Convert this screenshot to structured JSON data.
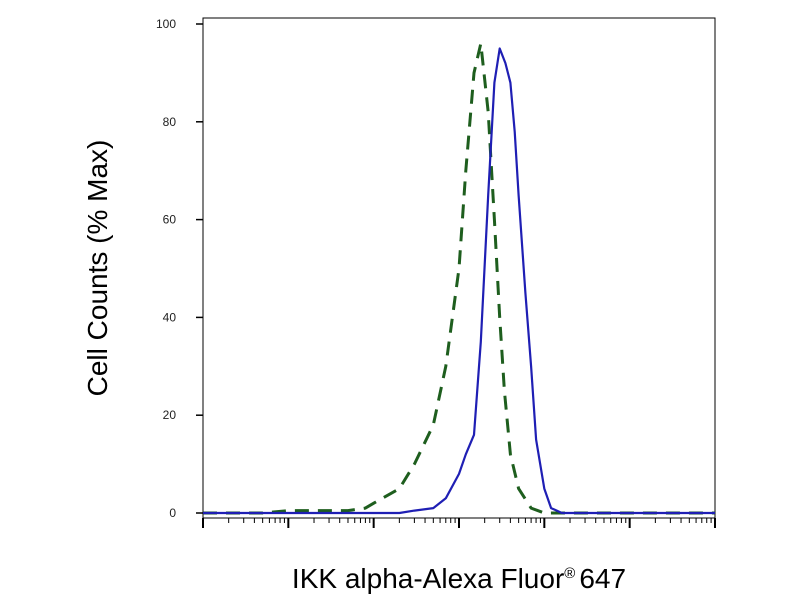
{
  "chart_data": {
    "type": "line",
    "xlabel": "IKK alpha-Alexa Fluor",
    "xlabel_mark": "®",
    "xlabel_suffix": "647",
    "ylabel": "Cell Counts (% Max)",
    "x_scale": "log",
    "xlim": [
      1,
      1000000
    ],
    "ylim": [
      0,
      100
    ],
    "y_ticks": [
      "100",
      "80",
      "60",
      "40",
      "20",
      "0"
    ],
    "grid": false,
    "legend": "none",
    "series": [
      {
        "style": "dashed",
        "color": "#1e5e1e",
        "x": [
          1,
          5,
          10,
          30,
          50,
          80,
          100,
          200,
          300,
          500,
          700,
          1000,
          1200,
          1500,
          1800,
          2200,
          2600,
          3000,
          3400,
          4000,
          5000,
          7000,
          10000,
          15000,
          20000,
          50000,
          1000000
        ],
        "y": [
          0,
          0,
          0.5,
          0.5,
          0.5,
          1,
          2,
          5,
          10,
          18,
          30,
          50,
          70,
          90,
          96,
          82,
          60,
          40,
          25,
          12,
          5,
          1,
          0,
          0,
          0,
          0,
          0
        ]
      },
      {
        "style": "solid",
        "color": "#1f1fb4",
        "x": [
          1,
          100,
          200,
          300,
          500,
          700,
          1000,
          1200,
          1500,
          1800,
          2200,
          2600,
          3000,
          3500,
          4000,
          4500,
          5000,
          6000,
          7000,
          8000,
          10000,
          12000,
          14000,
          16000,
          20000,
          30000,
          50000,
          1000000
        ],
        "y": [
          0,
          0,
          0,
          0.5,
          1,
          3,
          8,
          12,
          16,
          35,
          65,
          88,
          95,
          92,
          88,
          78,
          65,
          45,
          30,
          15,
          5,
          1,
          0.5,
          0,
          0,
          0,
          0,
          0
        ]
      }
    ]
  }
}
